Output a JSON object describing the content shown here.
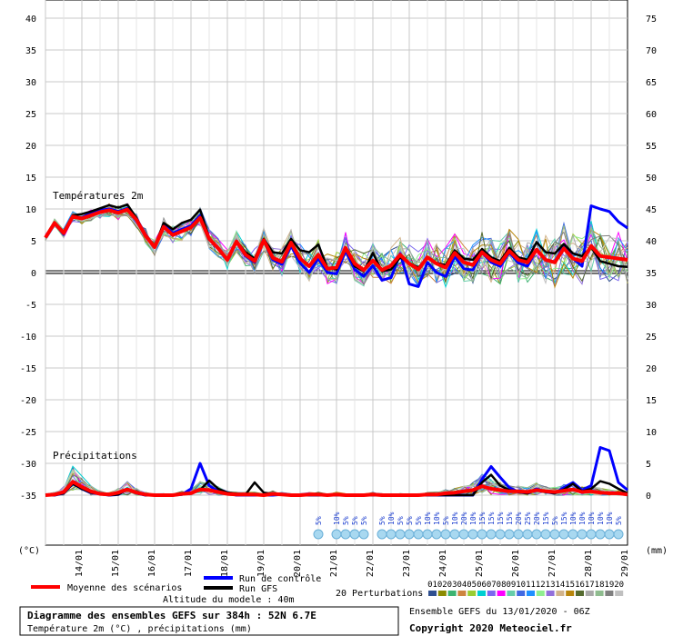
{
  "chart_data": {
    "type": "line",
    "left_axis": {
      "unit": "(°C)",
      "ticks": [
        40,
        35,
        30,
        25,
        20,
        15,
        10,
        5,
        0,
        -5,
        -10,
        -15,
        -20,
        -25,
        -30,
        -35
      ],
      "range": [
        -35,
        42
      ]
    },
    "right_axis": {
      "unit": "(mm)",
      "ticks": [
        75,
        70,
        65,
        60,
        55,
        50,
        45,
        40,
        35,
        30,
        25,
        20,
        15,
        10,
        5,
        0
      ]
    },
    "dates": [
      "14/01",
      "15/01",
      "16/01",
      "17/01",
      "18/01",
      "19/01",
      "20/01",
      "21/01",
      "22/01",
      "23/01",
      "24/01",
      "25/01",
      "26/01",
      "27/01",
      "28/01",
      "29/01"
    ],
    "temperature_label": "Températures 2m",
    "precip_label": "Précipitations",
    "series": [
      {
        "name": "Moyenne des scénarios",
        "color": "#ff0000",
        "steps": [
          0,
          1,
          2,
          3,
          4,
          5,
          6,
          7,
          8,
          9,
          10,
          11,
          12,
          13,
          14,
          15,
          16,
          17,
          18,
          19,
          20,
          21,
          22,
          23,
          24,
          25,
          26,
          27,
          28,
          29,
          30,
          31,
          32,
          33,
          34,
          35,
          36,
          37,
          38,
          39,
          40,
          41,
          42,
          43,
          44,
          45,
          46,
          47,
          48,
          49,
          50,
          51,
          52,
          53,
          54,
          55,
          56,
          57,
          58,
          59,
          60,
          61,
          62,
          63,
          64
        ],
        "temp": [
          5.5,
          7.8,
          6.2,
          8.8,
          8.5,
          9.0,
          9.5,
          9.8,
          9.4,
          9.9,
          8.3,
          5.8,
          4.0,
          7.2,
          5.9,
          6.5,
          7.1,
          8.6,
          5.3,
          3.8,
          2.0,
          4.9,
          2.8,
          1.8,
          5.1,
          2.3,
          1.7,
          4.7,
          2.2,
          1.0,
          2.8,
          0.6,
          0.8,
          3.9,
          1.4,
          0.4,
          1.9,
          0.4,
          1.1,
          2.8,
          1.4,
          0.5,
          2.4,
          1.4,
          0.8,
          3.1,
          1.6,
          1.2,
          3.2,
          2.0,
          1.4,
          3.4,
          2.0,
          1.6,
          3.6,
          2.0,
          1.6,
          3.8,
          2.2,
          1.8,
          4.2,
          2.6,
          2.4,
          2.2,
          2.0
        ],
        "precip": [
          0,
          0.1,
          0.5,
          2.1,
          1.3,
          0.6,
          0.2,
          0.1,
          0.4,
          0.9,
          0.4,
          0.1,
          0,
          0,
          0,
          0.2,
          0.3,
          0.9,
          0.8,
          0.5,
          0.2,
          0.1,
          0.1,
          0.1,
          0,
          0.2,
          0.1,
          0,
          0,
          0.1,
          0.1,
          0,
          0.1,
          0,
          0,
          0,
          0.1,
          0,
          0,
          0,
          0,
          0,
          0.1,
          0.1,
          0.3,
          0.4,
          0.6,
          0.8,
          1.4,
          1.0,
          0.8,
          0.6,
          0.6,
          0.5,
          0.8,
          0.6,
          0.5,
          0.7,
          0.9,
          0.5,
          0.6,
          0.4,
          0.3,
          0.3,
          0.1
        ]
      },
      {
        "name": "Run de contrôle",
        "color": "#0000ff",
        "steps": [
          0,
          1,
          2,
          3,
          4,
          5,
          6,
          7,
          8,
          9,
          10,
          11,
          12,
          13,
          14,
          15,
          16,
          17,
          18,
          19,
          20,
          21,
          22,
          23,
          24,
          25,
          26,
          27,
          28,
          29,
          30,
          31,
          32,
          33,
          34,
          35,
          36,
          37,
          38,
          39,
          40,
          41,
          42,
          43,
          44,
          45,
          46,
          47,
          48,
          49,
          50,
          51,
          52,
          53,
          54,
          55,
          56,
          57,
          58,
          59,
          60,
          61,
          62,
          63,
          64
        ],
        "temp": [
          5.5,
          7.8,
          6.0,
          8.8,
          8.6,
          9.4,
          9.8,
          10.0,
          9.6,
          10.1,
          8.5,
          6.0,
          4.0,
          7.6,
          6.2,
          6.8,
          7.4,
          9.0,
          5.2,
          3.7,
          2.0,
          5.0,
          2.6,
          1.6,
          5.0,
          2.0,
          1.3,
          4.2,
          1.5,
          0.0,
          2.2,
          0.0,
          -0.2,
          3.4,
          0.5,
          -0.6,
          1.1,
          -1.2,
          -0.8,
          3.0,
          -1.8,
          -2.2,
          1.6,
          0.0,
          -0.6,
          2.5,
          0.6,
          0.4,
          3.2,
          1.6,
          1.0,
          3.2,
          1.5,
          1.0,
          3.6,
          1.9,
          1.6,
          4.4,
          2.2,
          1.0,
          10.5,
          10.0,
          9.6,
          8.0,
          7.0
        ],
        "precip": [
          0,
          0,
          0.3,
          1.8,
          1.0,
          0.4,
          0.2,
          0,
          0.1,
          0.9,
          0.3,
          0,
          0,
          0,
          0,
          0.1,
          1.0,
          5.0,
          1.5,
          0.6,
          0.3,
          0,
          0,
          0,
          0,
          0,
          0.1,
          0,
          0,
          0,
          0,
          0,
          0,
          0,
          0,
          0,
          0,
          0,
          0,
          0,
          0,
          0,
          0,
          0,
          0,
          0,
          0,
          0,
          2.5,
          4.5,
          2.8,
          1.2,
          0.5,
          0.3,
          1.0,
          0.5,
          0.3,
          1.2,
          2.0,
          0.8,
          1.5,
          7.5,
          7.0,
          2.0,
          0.8
        ]
      },
      {
        "name": "Run GFS",
        "color": "#000000",
        "steps": [
          0,
          1,
          2,
          3,
          4,
          5,
          6,
          7,
          8,
          9,
          10,
          11,
          12,
          13,
          14,
          15,
          16,
          17,
          18,
          19,
          20,
          21,
          22,
          23,
          24,
          25,
          26,
          27,
          28,
          29,
          30,
          31,
          32,
          33,
          34,
          35,
          36,
          37,
          38,
          39,
          40,
          41,
          42,
          43,
          44,
          45,
          46,
          47,
          48,
          49,
          50,
          51,
          52,
          53,
          54,
          55,
          56,
          57,
          58,
          59,
          60,
          61,
          62,
          63,
          64
        ],
        "temp": [
          5.5,
          7.8,
          6.4,
          9.0,
          9.2,
          9.6,
          10.1,
          10.6,
          10.2,
          10.7,
          8.6,
          5.8,
          4.0,
          7.8,
          6.8,
          7.8,
          8.3,
          9.9,
          5.5,
          3.8,
          2.0,
          5.0,
          3.2,
          2.2,
          5.3,
          3.2,
          3.0,
          5.3,
          3.5,
          3.2,
          4.4,
          0.8,
          0.5,
          3.8,
          1.0,
          0.2,
          3.1,
          0.2,
          0.5,
          2.4,
          1.5,
          0.8,
          2.3,
          1.5,
          1.2,
          3.5,
          2.2,
          2.0,
          3.7,
          2.4,
          1.8,
          3.9,
          2.4,
          2.0,
          4.8,
          3.2,
          3.0,
          4.5,
          3.0,
          2.6,
          4.0,
          1.8,
          1.4,
          1.0,
          0.9
        ],
        "precip": [
          0,
          0,
          0.3,
          1.8,
          1.0,
          0.4,
          0.2,
          0,
          0.1,
          0.9,
          0.3,
          0,
          0,
          0,
          0,
          0.1,
          0.3,
          0.8,
          2.3,
          1.0,
          0.4,
          0.2,
          0.1,
          2.0,
          0.4,
          0.2,
          0.2,
          0,
          0,
          0,
          0,
          0,
          0,
          0,
          0,
          0,
          0,
          0,
          0,
          0,
          0,
          0,
          0,
          0,
          0,
          0,
          0,
          0,
          2.0,
          3.2,
          1.5,
          0.8,
          0.5,
          0.3,
          0.8,
          0.5,
          0.3,
          0.9,
          1.8,
          0.6,
          1.0,
          2.2,
          1.8,
          1.0,
          0.3
        ]
      }
    ],
    "legend": {
      "mean": "Moyenne des scénarios",
      "control": "Run de contrôle",
      "gfs": "Run GFS",
      "perturbations": "20 Perturbations",
      "perturbation_ids": [
        "01",
        "02",
        "03",
        "04",
        "05",
        "06",
        "07",
        "08",
        "09",
        "10",
        "11",
        "12",
        "13",
        "14",
        "15",
        "16",
        "17",
        "18",
        "19",
        "20"
      ],
      "perturbation_colors": [
        "#2f4f8f",
        "#8b8b00",
        "#3cb371",
        "#cd853f",
        "#9acd32",
        "#00ced1",
        "#7b68ee",
        "#ff00ff",
        "#66cdaa",
        "#4169e1",
        "#1e90ff",
        "#90ee90",
        "#9370db",
        "#d2b48c",
        "#b8860b",
        "#556b2f",
        "#a9a9a9",
        "#8fbc8f",
        "#808080",
        "#c0c0c0"
      ]
    },
    "altitude": "Altitude du modele : 40m",
    "snow_markers": [
      {
        "step": 30,
        "pct": "5%"
      },
      {
        "step": 32,
        "pct": "10%"
      },
      {
        "step": 33,
        "pct": "5%"
      },
      {
        "step": 34,
        "pct": "5%"
      },
      {
        "step": 35,
        "pct": "5%"
      },
      {
        "step": 37,
        "pct": "5%"
      },
      {
        "step": 38,
        "pct": "10%"
      },
      {
        "step": 39,
        "pct": "5%"
      },
      {
        "step": 40,
        "pct": "5%"
      },
      {
        "step": 41,
        "pct": "5%"
      },
      {
        "step": 42,
        "pct": "10%"
      },
      {
        "step": 43,
        "pct": "10%"
      },
      {
        "step": 44,
        "pct": "5%"
      },
      {
        "step": 45,
        "pct": "10%"
      },
      {
        "step": 46,
        "pct": "20%"
      },
      {
        "step": 47,
        "pct": "10%"
      },
      {
        "step": 48,
        "pct": "15%"
      },
      {
        "step": 49,
        "pct": "15%"
      },
      {
        "step": 50,
        "pct": "15%"
      },
      {
        "step": 51,
        "pct": "15%"
      },
      {
        "step": 52,
        "pct": "20%"
      },
      {
        "step": 53,
        "pct": "25%"
      },
      {
        "step": 54,
        "pct": "20%"
      },
      {
        "step": 55,
        "pct": "15%"
      },
      {
        "step": 56,
        "pct": "5%"
      },
      {
        "step": 57,
        "pct": "15%"
      },
      {
        "step": 58,
        "pct": "10%"
      },
      {
        "step": 59,
        "pct": "10%"
      },
      {
        "step": 60,
        "pct": "10%"
      },
      {
        "step": 61,
        "pct": "10%"
      },
      {
        "step": 62,
        "pct": "10%"
      },
      {
        "step": 63,
        "pct": "5%"
      }
    ]
  },
  "footer": {
    "title": "Diagramme des ensembles GEFS sur 384h : 52N 6.7E",
    "subtitle": "Température 2m (°C) , précipitations (mm)",
    "run": "Ensemble GEFS du 13/01/2020 - 06Z",
    "copyright": "Copyright 2020 Meteociel.fr"
  }
}
